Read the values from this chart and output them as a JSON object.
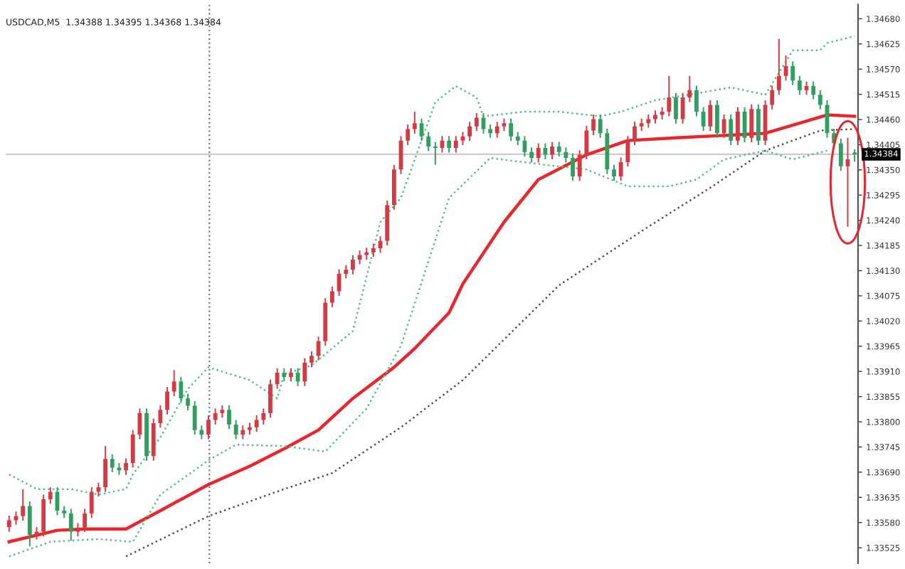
{
  "chart_data": {
    "type": "candlestick",
    "title": "USDCAD,M5  1.34388 1.34395 1.34368 1.34384",
    "categories": [
      null,
      null,
      null,
      null,
      null,
      null,
      null,
      null,
      null,
      null,
      null,
      null,
      null,
      null,
      null,
      null,
      null,
      null,
      null,
      null,
      null,
      null,
      null,
      null,
      null,
      null,
      null,
      null,
      null,
      null,
      null,
      null,
      null,
      null,
      null,
      null,
      null,
      null,
      null,
      null,
      null,
      null,
      null,
      null,
      null,
      null,
      null,
      null,
      null,
      null,
      null,
      null,
      null,
      null,
      null,
      null,
      null,
      null,
      null,
      null,
      null,
      null,
      null,
      null,
      null,
      null,
      null,
      null,
      null,
      null,
      null,
      null,
      null,
      null,
      null,
      null,
      null,
      null,
      null,
      null,
      null,
      null,
      null,
      null,
      null,
      null,
      null,
      null,
      null,
      null,
      null,
      null,
      null,
      null,
      null,
      null,
      null,
      null,
      null,
      null,
      null,
      null,
      null,
      null,
      null,
      null,
      null,
      null,
      null,
      null,
      null,
      null,
      null,
      null,
      null,
      null,
      null,
      null,
      null,
      null,
      null,
      null,
      null,
      null
    ],
    "colors": [
      "#d23a44",
      "#d23a44",
      "#d23a44",
      "#2f9e5e",
      "#d23a44",
      "#d23a44",
      "#d23a44",
      "#2f9e5e",
      "#2f9e5e",
      "#2f9e5e",
      "#d23a44",
      "#d23a44",
      "#d23a44",
      "#d23a44",
      "#d23a44",
      "#2f9e5e",
      "#2f9e5e",
      "#d23a44",
      "#d23a44",
      "#d23a44",
      "#2f9e5e",
      "#d23a44",
      "#d23a44",
      "#d23a44",
      "#d23a44",
      "#2f9e5e",
      "#2f9e5e",
      "#2f9e5e",
      "#2f9e5e",
      "#d23a44",
      "#d23a44",
      "#d23a44",
      "#2f9e5e",
      "#2f9e5e",
      "#d23a44",
      "#d23a44",
      "#d23a44",
      "#d23a44",
      "#d23a44",
      "#d23a44",
      "#2f9e5e",
      "#d23a44",
      "#2f9e5e",
      "#d23a44",
      "#d23a44",
      "#d23a44",
      "#d23a44",
      "#d23a44",
      "#d23a44",
      "#d23a44",
      "#d23a44",
      "#d23a44",
      "#d23a44",
      "#d23a44",
      "#d23a44",
      "#d23a44",
      "#d23a44",
      "#d23a44",
      "#d23a44",
      "#d23a44",
      "#2f9e5e",
      "#2f9e5e",
      "#2f9e5e",
      "#d23a44",
      "#2f9e5e",
      "#d23a44",
      "#d23a44",
      "#d23a44",
      "#d23a44",
      "#2f9e5e",
      "#2f9e5e",
      "#d23a44",
      "#d23a44",
      "#2f9e5e",
      "#2f9e5e",
      "#2f9e5e",
      "#2f9e5e",
      "#d23a44",
      "#2f9e5e",
      "#d23a44",
      "#2f9e5e",
      "#2f9e5e",
      "#2f9e5e",
      "#d23a44",
      "#d23a44",
      "#d23a44",
      "#2f9e5e",
      "#2f9e5e",
      "#2f9e5e",
      "#d23a44",
      "#d23a44",
      "#d23a44",
      "#d23a44",
      "#d23a44",
      "#d23a44",
      "#d23a44",
      "#d23a44",
      "#2f9e5e",
      "#d23a44",
      "#d23a44",
      "#2f9e5e",
      "#2f9e5e",
      "#d23a44",
      "#2f9e5e",
      "#d23a44",
      "#2f9e5e",
      "#d23a44",
      "#2f9e5e",
      "#d23a44",
      "#2f9e5e",
      "#d23a44",
      "#d23a44",
      "#d23a44",
      "#d23a44",
      "#2f9e5e",
      "#2f9e5e",
      "#d23a44",
      "#2f9e5e",
      "#2f9e5e",
      "#2f9e5e",
      "#2f9e5e",
      "#2f9e5e",
      "#d23a44",
      "#2f9e5e"
    ],
    "ohlc": [
      [
        1.3357,
        1.33595,
        1.3356,
        1.33585
      ],
      [
        1.33585,
        1.33604,
        1.33575,
        1.33594
      ],
      [
        1.33594,
        1.33653,
        1.33584,
        1.33616
      ],
      [
        1.33616,
        1.33626,
        1.33528,
        1.33553
      ],
      [
        1.33553,
        1.3357,
        1.33543,
        1.3356
      ],
      [
        1.3356,
        1.33641,
        1.3355,
        1.33631
      ],
      [
        1.33631,
        1.33657,
        1.33621,
        1.33647
      ],
      [
        1.33647,
        1.33657,
        1.33596,
        1.33606
      ],
      [
        1.33606,
        1.33616,
        1.3359,
        1.336
      ],
      [
        1.336,
        1.3361,
        1.3354,
        1.3356
      ],
      [
        1.3356,
        1.33579,
        1.3355,
        1.33569
      ],
      [
        1.33569,
        1.3361,
        1.33559,
        1.336
      ],
      [
        1.336,
        1.33657,
        1.3359,
        1.33647
      ],
      [
        1.33647,
        1.33667,
        1.33637,
        1.33657
      ],
      [
        1.33657,
        1.33747,
        1.33647,
        1.33719
      ],
      [
        1.33719,
        1.33729,
        1.3369,
        1.337
      ],
      [
        1.337,
        1.3371,
        1.33684,
        1.33694
      ],
      [
        1.33694,
        1.3372,
        1.33684,
        1.3371
      ],
      [
        1.3371,
        1.33782,
        1.337,
        1.33772
      ],
      [
        1.33772,
        1.33829,
        1.33762,
        1.33819
      ],
      [
        1.33819,
        1.33829,
        1.33715,
        1.33725
      ],
      [
        1.33725,
        1.33807,
        1.33715,
        1.33797
      ],
      [
        1.33797,
        1.33836,
        1.33787,
        1.33826
      ],
      [
        1.33826,
        1.33876,
        1.33816,
        1.33866
      ],
      [
        1.33866,
        1.33913,
        1.33856,
        1.33888
      ],
      [
        1.33888,
        1.33898,
        1.33841,
        1.33851
      ],
      [
        1.33851,
        1.33861,
        1.33825,
        1.33835
      ],
      [
        1.33835,
        1.33845,
        1.33772,
        1.33782
      ],
      [
        1.33782,
        1.33792,
        1.33762,
        1.33772
      ],
      [
        1.33772,
        1.33814,
        1.33762,
        1.33804
      ],
      [
        1.33804,
        1.33829,
        1.33794,
        1.33819
      ],
      [
        1.33819,
        1.33836,
        1.33809,
        1.33826
      ],
      [
        1.33826,
        1.33836,
        1.33784,
        1.33794
      ],
      [
        1.33794,
        1.33804,
        1.33762,
        1.33772
      ],
      [
        1.33772,
        1.33792,
        1.33762,
        1.33782
      ],
      [
        1.33782,
        1.33798,
        1.33772,
        1.33788
      ],
      [
        1.33788,
        1.33814,
        1.33778,
        1.33804
      ],
      [
        1.33804,
        1.33829,
        1.33794,
        1.33819
      ],
      [
        1.33819,
        1.33892,
        1.33809,
        1.33882
      ],
      [
        1.33882,
        1.33917,
        1.33872,
        1.33907
      ],
      [
        1.33907,
        1.33917,
        1.33888,
        1.33898
      ],
      [
        1.33898,
        1.33917,
        1.33888,
        1.33907
      ],
      [
        1.33907,
        1.33917,
        1.33878,
        1.33888
      ],
      [
        1.33888,
        1.33939,
        1.33878,
        1.33929
      ],
      [
        1.33929,
        1.33954,
        1.33919,
        1.33944
      ],
      [
        1.33944,
        1.33986,
        1.33934,
        1.33976
      ],
      [
        1.33976,
        1.3407,
        1.33966,
        1.3406
      ],
      [
        1.3406,
        1.34095,
        1.3405,
        1.34085
      ],
      [
        1.34085,
        1.34133,
        1.34075,
        1.34123
      ],
      [
        1.34123,
        1.34142,
        1.34113,
        1.34132
      ],
      [
        1.34132,
        1.34164,
        1.34122,
        1.34154
      ],
      [
        1.34154,
        1.34174,
        1.34144,
        1.34164
      ],
      [
        1.34164,
        1.3418,
        1.34154,
        1.3417
      ],
      [
        1.3417,
        1.34189,
        1.3416,
        1.34179
      ],
      [
        1.34179,
        1.34205,
        1.34169,
        1.34195
      ],
      [
        1.34195,
        1.34283,
        1.34185,
        1.34273
      ],
      [
        1.34273,
        1.34361,
        1.34263,
        1.34351
      ],
      [
        1.34351,
        1.34424,
        1.34341,
        1.34414
      ],
      [
        1.34414,
        1.34449,
        1.34404,
        1.34439
      ],
      [
        1.34439,
        1.34477,
        1.34429,
        1.34452
      ],
      [
        1.34452,
        1.34462,
        1.34413,
        1.34423
      ],
      [
        1.34423,
        1.34433,
        1.34391,
        1.34401
      ],
      [
        1.34401,
        1.34411,
        1.34361,
        1.34398
      ],
      [
        1.34398,
        1.34424,
        1.34388,
        1.34414
      ],
      [
        1.34414,
        1.34424,
        1.34388,
        1.34398
      ],
      [
        1.34398,
        1.34424,
        1.34388,
        1.34414
      ],
      [
        1.34414,
        1.34433,
        1.34404,
        1.34423
      ],
      [
        1.34423,
        1.34455,
        1.34413,
        1.34445
      ],
      [
        1.34445,
        1.34474,
        1.34435,
        1.34464
      ],
      [
        1.34464,
        1.34474,
        1.34429,
        1.34439
      ],
      [
        1.34439,
        1.34449,
        1.3442,
        1.3443
      ],
      [
        1.3443,
        1.34455,
        1.3442,
        1.34445
      ],
      [
        1.34445,
        1.34462,
        1.34435,
        1.34452
      ],
      [
        1.34452,
        1.34462,
        1.34413,
        1.34423
      ],
      [
        1.34423,
        1.34433,
        1.34404,
        1.34414
      ],
      [
        1.34414,
        1.34424,
        1.34379,
        1.34389
      ],
      [
        1.34389,
        1.34399,
        1.34366,
        1.34376
      ],
      [
        1.34376,
        1.34408,
        1.34366,
        1.34398
      ],
      [
        1.34398,
        1.34408,
        1.34373,
        1.34383
      ],
      [
        1.34383,
        1.34411,
        1.34373,
        1.34401
      ],
      [
        1.34401,
        1.34411,
        1.34379,
        1.34389
      ],
      [
        1.34389,
        1.34399,
        1.34366,
        1.34376
      ],
      [
        1.34376,
        1.34386,
        1.34326,
        1.34336
      ],
      [
        1.34336,
        1.34393,
        1.34326,
        1.34383
      ],
      [
        1.34383,
        1.34446,
        1.34373,
        1.34436
      ],
      [
        1.34436,
        1.34471,
        1.34426,
        1.34461
      ],
      [
        1.34461,
        1.34471,
        1.3442,
        1.3443
      ],
      [
        1.3443,
        1.3444,
        1.34341,
        1.34351
      ],
      [
        1.34351,
        1.34361,
        1.34326,
        1.34336
      ],
      [
        1.34336,
        1.34377,
        1.34326,
        1.34367
      ],
      [
        1.34367,
        1.34424,
        1.34357,
        1.34414
      ],
      [
        1.34414,
        1.34455,
        1.34404,
        1.34445
      ],
      [
        1.34445,
        1.34462,
        1.34435,
        1.34452
      ],
      [
        1.34452,
        1.34471,
        1.34442,
        1.34461
      ],
      [
        1.34461,
        1.3448,
        1.34451,
        1.3447
      ],
      [
        1.3447,
        1.34487,
        1.3446,
        1.34477
      ],
      [
        1.34477,
        1.34555,
        1.34467,
        1.34508
      ],
      [
        1.34508,
        1.34518,
        1.34451,
        1.34461
      ],
      [
        1.34461,
        1.34518,
        1.34451,
        1.34508
      ],
      [
        1.34508,
        1.34555,
        1.34498,
        1.34524
      ],
      [
        1.34524,
        1.34534,
        1.34467,
        1.34477
      ],
      [
        1.34477,
        1.34487,
        1.34435,
        1.34445
      ],
      [
        1.34445,
        1.34502,
        1.34435,
        1.34492
      ],
      [
        1.34492,
        1.34502,
        1.3442,
        1.3443
      ],
      [
        1.3443,
        1.34471,
        1.3442,
        1.34461
      ],
      [
        1.34461,
        1.34471,
        1.34404,
        1.34414
      ],
      [
        1.34414,
        1.34487,
        1.34404,
        1.34477
      ],
      [
        1.34477,
        1.34487,
        1.3441,
        1.3442
      ],
      [
        1.3442,
        1.34493,
        1.3441,
        1.34483
      ],
      [
        1.34483,
        1.34493,
        1.34404,
        1.34414
      ],
      [
        1.34414,
        1.34502,
        1.34404,
        1.34492
      ],
      [
        1.34492,
        1.34534,
        1.34482,
        1.34524
      ],
      [
        1.34524,
        1.34636,
        1.34514,
        1.34555
      ],
      [
        1.34555,
        1.346,
        1.34545,
        1.34577
      ],
      [
        1.34577,
        1.34587,
        1.34535,
        1.34545
      ],
      [
        1.34545,
        1.34555,
        1.34514,
        1.34524
      ],
      [
        1.34524,
        1.34543,
        1.34514,
        1.34533
      ],
      [
        1.34533,
        1.34543,
        1.34504,
        1.34514
      ],
      [
        1.34514,
        1.34524,
        1.34482,
        1.34492
      ],
      [
        1.34492,
        1.34502,
        1.3442,
        1.3443
      ],
      [
        1.3443,
        1.3444,
        1.34398,
        1.34408
      ],
      [
        1.34408,
        1.34418,
        1.34348,
        1.34358
      ],
      [
        1.34358,
        1.3442,
        1.34226,
        1.34373
      ],
      [
        1.34388,
        1.34395,
        1.34368,
        1.34384
      ]
    ],
    "series": [
      {
        "type": "line",
        "color": "#e8262e",
        "line_style": "solid",
        "values": [
          1.33538,
          null,
          null,
          null,
          null,
          null,
          null,
          1.33563,
          null,
          null,
          null,
          1.33566,
          null,
          null,
          null,
          null,
          null,
          1.33566,
          null,
          null,
          null,
          null,
          1.33606,
          null,
          null,
          null,
          null,
          null,
          null,
          1.33663,
          null,
          null,
          null,
          null,
          null,
          1.33703,
          null,
          null,
          null,
          null,
          1.33741,
          null,
          null,
          null,
          null,
          1.33782,
          null,
          null,
          null,
          null,
          1.33851,
          null,
          null,
          null,
          null,
          null,
          1.33919,
          null,
          null,
          1.3396,
          null,
          null,
          null,
          null,
          1.34038,
          null,
          1.34101,
          null,
          null,
          null,
          null,
          null,
          1.34236,
          null,
          null,
          null,
          null,
          1.34329,
          null,
          null,
          null,
          null,
          null,
          null,
          1.34383,
          null,
          null,
          null,
          null,
          null,
          1.34414,
          null,
          null,
          null,
          null,
          null,
          null,
          1.3442,
          null,
          null,
          null,
          null,
          null,
          null,
          null,
          1.34426,
          null,
          null,
          null,
          null,
          1.3443,
          null,
          null,
          null,
          null,
          1.34452,
          null,
          null,
          null,
          1.3447,
          null,
          null,
          null,
          1.34467
        ]
      },
      {
        "type": "line",
        "color": "#555555",
        "line_style": "dotted",
        "values": [
          null,
          null,
          null,
          null,
          null,
          null,
          null,
          null,
          null,
          null,
          null,
          null,
          null,
          null,
          null,
          null,
          null,
          1.33506,
          null,
          null,
          null,
          null,
          null,
          null,
          null,
          null,
          null,
          null,
          null,
          1.33594,
          null,
          null,
          null,
          null,
          null,
          null,
          null,
          null,
          null,
          null,
          1.33653,
          null,
          null,
          null,
          null,
          null,
          null,
          1.33688,
          null,
          null,
          null,
          null,
          null,
          null,
          null,
          null,
          null,
          1.33788,
          null,
          null,
          null,
          null,
          null,
          null,
          null,
          null,
          1.33891,
          null,
          null,
          null,
          null,
          null,
          null,
          null,
          null,
          null,
          null,
          null,
          null,
          null,
          1.34098,
          null,
          null,
          null,
          null,
          null,
          null,
          null,
          null,
          null,
          null,
          null,
          null,
          1.34226,
          null,
          null,
          null,
          null,
          null,
          null,
          null,
          null,
          1.34311,
          null,
          null,
          null,
          null,
          null,
          null,
          null,
          1.34392,
          null,
          null,
          null,
          null,
          null,
          null,
          null,
          1.34436,
          null,
          null,
          null,
          null,
          1.34439
        ]
      },
      {
        "type": "line",
        "color": "#5bbf8a",
        "line_style": "dotted",
        "values": [
          1.33685,
          null,
          null,
          null,
          1.33653,
          null,
          null,
          null,
          null,
          1.33653,
          null,
          null,
          null,
          1.33641,
          null,
          null,
          null,
          1.33653,
          1.33685,
          null,
          null,
          null,
          1.33766,
          null,
          null,
          null,
          1.33872,
          null,
          null,
          1.33919,
          null,
          null,
          null,
          null,
          null,
          1.33891,
          null,
          null,
          null,
          1.33851,
          1.33904,
          null,
          null,
          null,
          1.33923,
          null,
          null,
          null,
          null,
          null,
          1.33998,
          null,
          null,
          null,
          1.34236,
          null,
          null,
          1.34289,
          null,
          null,
          1.34414,
          null,
          1.34498,
          null,
          null,
          1.34533,
          null,
          null,
          1.34508,
          1.34467,
          null,
          null,
          null,
          null,
          null,
          1.34477,
          null,
          null,
          null,
          null,
          1.34477,
          null,
          null,
          null,
          null,
          null,
          1.34467,
          null,
          null,
          1.34477,
          null,
          null,
          null,
          null,
          1.34502,
          null,
          null,
          null,
          null,
          null,
          1.34517,
          null,
          null,
          null,
          null,
          1.3453,
          null,
          null,
          null,
          null,
          1.34514,
          null,
          null,
          null,
          1.34611,
          null,
          null,
          null,
          1.34611,
          1.34627,
          null,
          null,
          null,
          1.34642
        ]
      },
      {
        "type": "line",
        "color": "#5bbf8a",
        "line_style": "dotted",
        "values": [
          1.33506,
          null,
          null,
          null,
          null,
          null,
          1.33538,
          null,
          null,
          null,
          null,
          null,
          null,
          1.33544,
          null,
          null,
          null,
          null,
          1.33538,
          null,
          null,
          null,
          1.33641,
          null,
          null,
          null,
          null,
          null,
          null,
          1.33716,
          null,
          null,
          null,
          1.3375,
          null,
          null,
          null,
          null,
          null,
          null,
          1.33747,
          null,
          null,
          null,
          null,
          null,
          1.33735,
          null,
          null,
          null,
          null,
          null,
          1.33829,
          null,
          null,
          null,
          null,
          1.33966,
          null,
          null,
          null,
          null,
          null,
          null,
          1.34289,
          null,
          null,
          null,
          null,
          null,
          1.34376,
          null,
          null,
          null,
          null,
          null,
          null,
          null,
          1.34361,
          null,
          null,
          null,
          null,
          null,
          1.34351,
          null,
          null,
          null,
          null,
          null,
          1.34314,
          null,
          null,
          null,
          null,
          null,
          1.34314,
          null,
          null,
          null,
          1.34329,
          null,
          null,
          null,
          1.34373,
          null,
          null,
          null,
          null,
          null,
          1.34392,
          null,
          null,
          null,
          1.34373,
          null,
          null,
          null,
          null,
          1.34392,
          null,
          null,
          null,
          null
        ]
      }
    ],
    "ref_lines": [
      {
        "axis": "y",
        "value": 1.34384,
        "label": "1.34384",
        "color": "#cccccc",
        "line_style": "solid"
      }
    ],
    "ylim": [
      1.33491,
      1.34711
    ],
    "yticks": [
      {
        "value": 1.33525,
        "label": "1.33525"
      },
      {
        "value": 1.3358,
        "label": "1.33580"
      },
      {
        "value": 1.33635,
        "label": "1.33635"
      },
      {
        "value": 1.3369,
        "label": "1.33690"
      },
      {
        "value": 1.33745,
        "label": "1.33745"
      },
      {
        "value": 1.338,
        "label": "1.33800"
      },
      {
        "value": 1.33855,
        "label": "1.33855"
      },
      {
        "value": 1.3391,
        "label": "1.33910"
      },
      {
        "value": 1.33965,
        "label": "1.33965"
      },
      {
        "value": 1.3402,
        "label": "1.34020"
      },
      {
        "value": 1.34075,
        "label": "1.34075"
      },
      {
        "value": 1.3413,
        "label": "1.34130"
      },
      {
        "value": 1.34185,
        "label": "1.34185"
      },
      {
        "value": 1.3424,
        "label": "1.34240"
      },
      {
        "value": 1.34295,
        "label": "1.34295"
      },
      {
        "value": 1.3435,
        "label": "1.34350"
      },
      {
        "value": 1.34405,
        "label": "1.34405"
      },
      {
        "value": 1.3446,
        "label": "1.34460"
      },
      {
        "value": 1.34515,
        "label": "1.34515"
      },
      {
        "value": 1.3457,
        "label": "1.34570"
      },
      {
        "value": 1.34625,
        "label": "1.34625"
      },
      {
        "value": 1.3468,
        "label": "1.34680"
      }
    ],
    "tick_labels": "y",
    "grid": false,
    "legend": false
  }
}
